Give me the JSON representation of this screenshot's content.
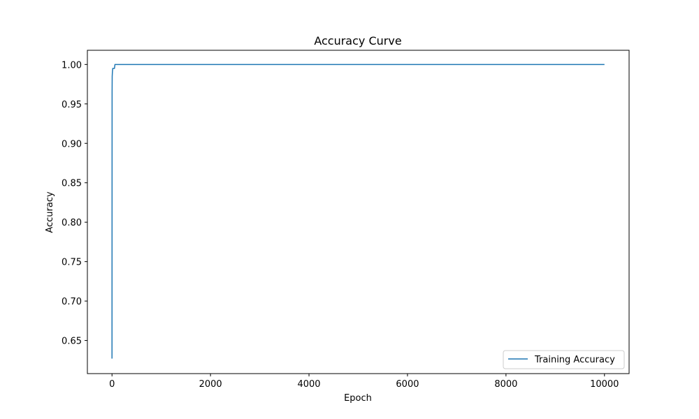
{
  "chart_data": {
    "type": "line",
    "title": "Accuracy Curve",
    "xlabel": "Epoch",
    "ylabel": "Accuracy",
    "xlim": [
      -500,
      10500
    ],
    "ylim": [
      0.608,
      1.018
    ],
    "x_ticks": [
      0,
      2000,
      4000,
      6000,
      8000,
      10000
    ],
    "x_tick_labels": [
      "0",
      "2000",
      "4000",
      "6000",
      "8000",
      "10000"
    ],
    "y_ticks": [
      0.65,
      0.7,
      0.75,
      0.8,
      0.85,
      0.9,
      0.95,
      1.0
    ],
    "y_tick_labels": [
      "0.65",
      "0.70",
      "0.75",
      "0.80",
      "0.85",
      "0.90",
      "0.95",
      "1.00"
    ],
    "grid": false,
    "legend_position": "lower-right",
    "series": [
      {
        "name": "Training Accuracy",
        "color": "#1f77b4",
        "x": [
          0,
          2,
          4,
          8,
          15,
          25,
          40,
          50,
          60,
          70,
          10000
        ],
        "y": [
          0.627,
          0.965,
          0.985,
          0.99,
          0.995,
          0.995,
          0.995,
          0.995,
          1.0,
          1.0,
          1.0
        ]
      }
    ]
  }
}
